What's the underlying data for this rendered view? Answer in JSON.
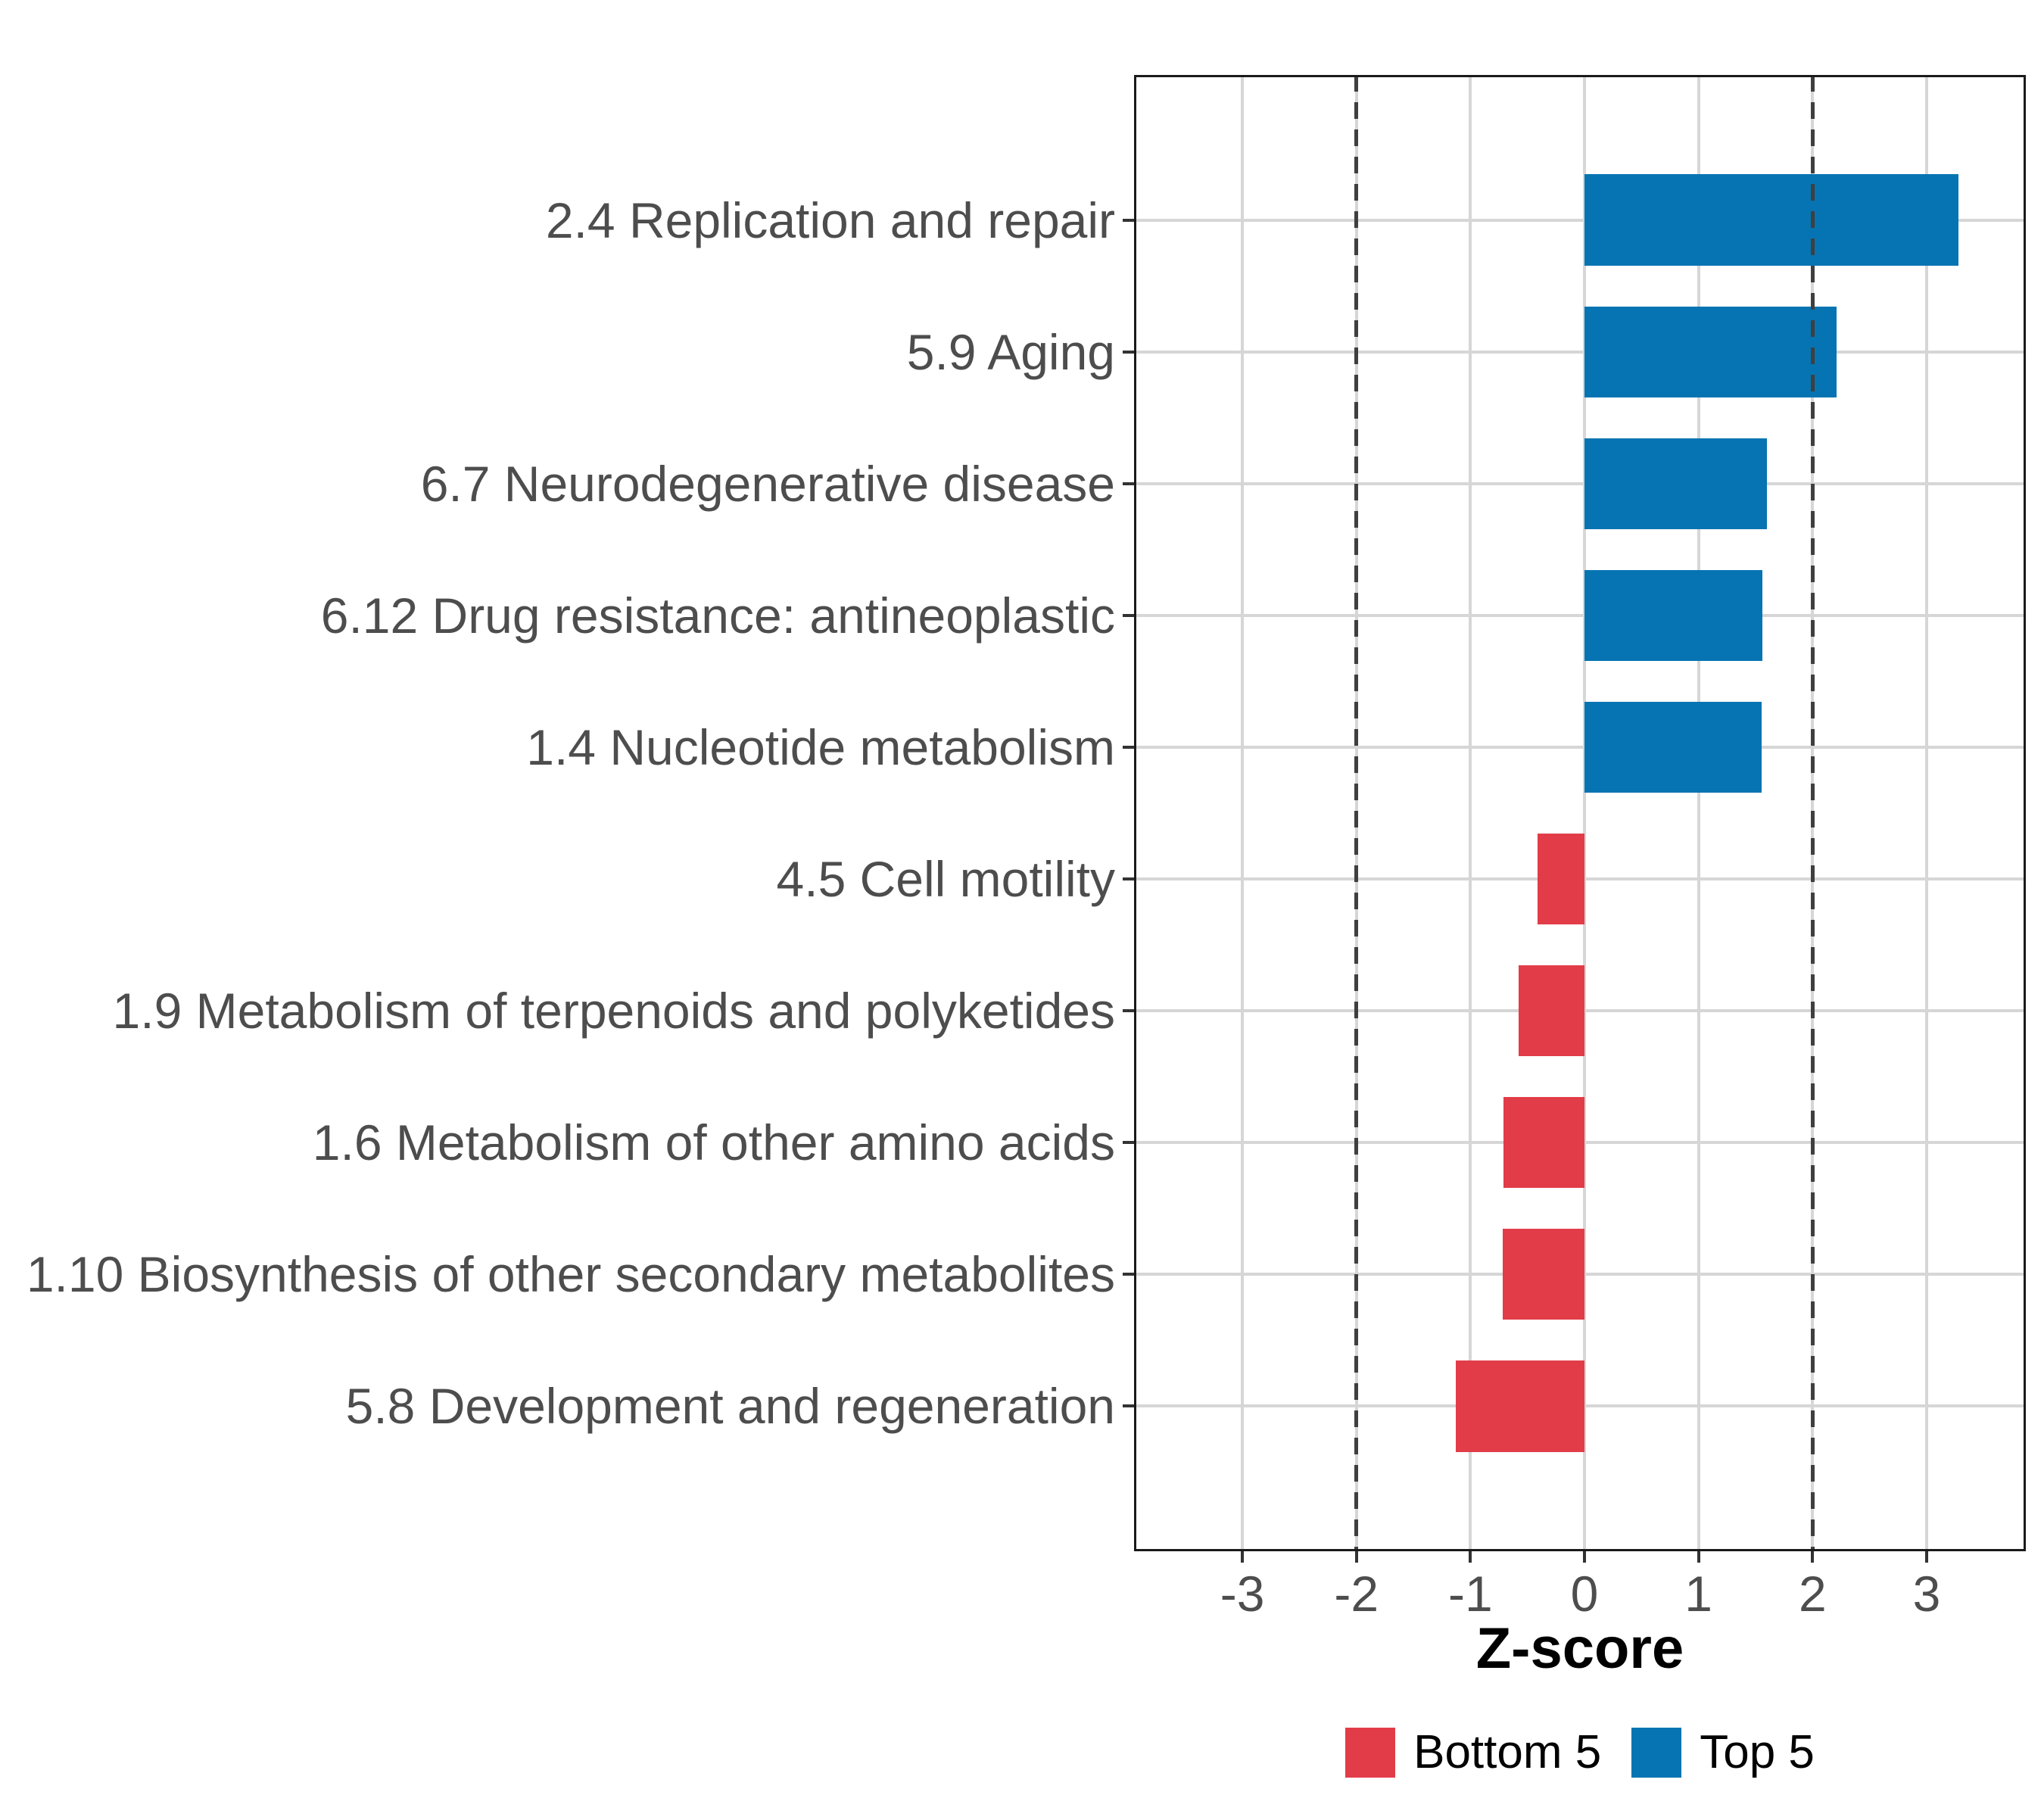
{
  "chart_data": {
    "type": "bar",
    "orientation": "horizontal",
    "title": "",
    "xlabel": "Z-score",
    "categories": [
      "2.4 Replication and repair",
      "5.9 Aging",
      "6.7 Neurodegenerative disease",
      "6.12 Drug resistance: antineoplastic",
      "1.4 Nucleotide metabolism",
      "4.5 Cell motility",
      "1.9 Metabolism of terpenoids and polyketides",
      "1.6 Metabolism of other amino acids",
      "1.10 Biosynthesis of other secondary metabolites",
      "5.8 Development and regeneration"
    ],
    "values": [
      3.28,
      2.21,
      1.6,
      1.56,
      1.55,
      -0.41,
      -0.58,
      -0.71,
      -0.72,
      -1.13
    ],
    "groups": [
      "Top 5",
      "Top 5",
      "Top 5",
      "Top 5",
      "Top 5",
      "Bottom 5",
      "Bottom 5",
      "Bottom 5",
      "Bottom 5",
      "Bottom 5"
    ],
    "group_colors": {
      "Top 5": "#0674B2",
      "Bottom 5": "#E23C49"
    },
    "x_ticks": [
      "-3",
      "-2",
      "-1",
      "0",
      "1",
      "2",
      "3"
    ],
    "x_tick_values": [
      -3,
      -2,
      -1,
      0,
      1,
      2,
      3
    ],
    "xlim": [
      -3.95,
      3.87
    ],
    "reference_lines": [
      -2,
      2
    ],
    "grid": "major",
    "legend": {
      "position": "bottom",
      "entries": [
        {
          "label": "Bottom 5",
          "color": "#E23C49"
        },
        {
          "label": "Top 5",
          "color": "#0674B2"
        }
      ]
    }
  },
  "style": {
    "background": "#ffffff",
    "grid_color": "#d6d6d6",
    "ref_line_color": "#3f3f3f",
    "axis_text_color": "#4d4d4d",
    "panel_border_color": "#1a1a1a",
    "tick_color": "#333333"
  }
}
